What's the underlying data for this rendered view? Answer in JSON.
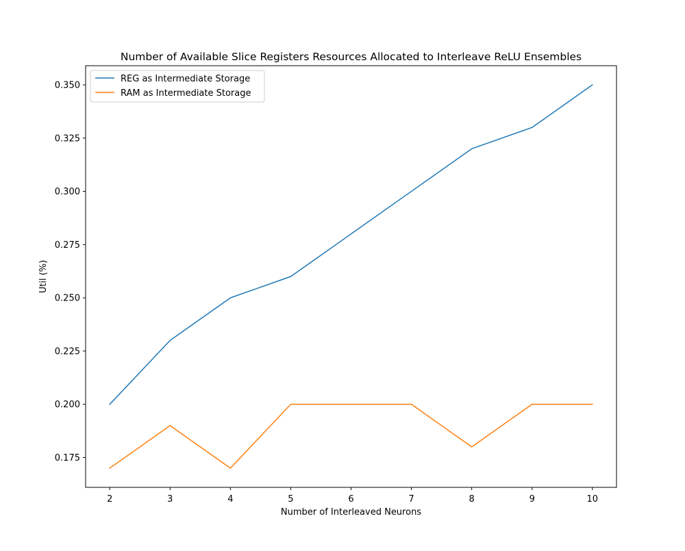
{
  "chart_data": {
    "type": "line",
    "title": "Number of Available Slice Registers Resources Allocated to Interleave ReLU Ensembles",
    "xlabel": "Number of Interleaved Neurons",
    "ylabel": "Util (%)",
    "x": [
      2,
      3,
      4,
      5,
      6,
      7,
      8,
      9,
      10
    ],
    "xlim": [
      1.6,
      10.4
    ],
    "ylim": [
      0.161,
      0.359
    ],
    "xticks": [
      2,
      3,
      4,
      5,
      6,
      7,
      8,
      9,
      10
    ],
    "yticks": [
      0.175,
      0.2,
      0.225,
      0.25,
      0.275,
      0.3,
      0.325,
      0.35
    ],
    "ytick_labels": [
      "0.175",
      "0.200",
      "0.225",
      "0.250",
      "0.275",
      "0.300",
      "0.325",
      "0.350"
    ],
    "grid": false,
    "legend_position": "upper-left",
    "series": [
      {
        "name": "REG as Intermediate Storage",
        "color": "#1f77b4",
        "values": [
          0.2,
          0.23,
          0.25,
          0.26,
          0.28,
          0.3,
          0.32,
          0.33,
          0.35
        ]
      },
      {
        "name": "RAM as Intermediate Storage",
        "color": "#ff7f0e",
        "values": [
          0.17,
          0.19,
          0.17,
          0.2,
          0.2,
          0.2,
          0.18,
          0.2,
          0.2
        ]
      }
    ]
  }
}
